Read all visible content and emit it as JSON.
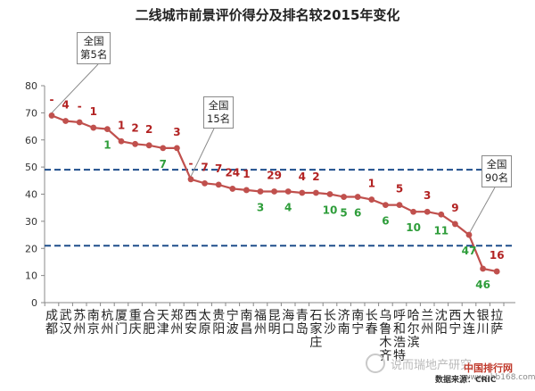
{
  "chart_data": {
    "type": "line",
    "title": "二线城市前景评价得分及排名较2015年变化",
    "ylim": [
      0,
      80
    ],
    "yticks": [
      0,
      10,
      20,
      30,
      40,
      50,
      60,
      70,
      80
    ],
    "reference_lines": [
      49,
      21
    ],
    "colors": {
      "line": "#c0504d",
      "up": "#b22222",
      "down": "#2e9d3a",
      "ref": "#1f4e8c"
    },
    "points": [
      {
        "city": [
          "成",
          "都"
        ],
        "value": 69,
        "change": "-",
        "dir": "up"
      },
      {
        "city": [
          "武",
          "汉"
        ],
        "value": 67,
        "change": "4",
        "dir": "up"
      },
      {
        "city": [
          "苏",
          "州"
        ],
        "value": 66.5,
        "change": "-",
        "dir": "up"
      },
      {
        "city": [
          "南",
          "京"
        ],
        "value": 64.5,
        "change": "1",
        "dir": "up"
      },
      {
        "city": [
          "杭",
          "州"
        ],
        "value": 64,
        "change": "1",
        "dir": "down"
      },
      {
        "city": [
          "厦",
          "门"
        ],
        "value": 59.5,
        "change": "1",
        "dir": "up"
      },
      {
        "city": [
          "重",
          "庆"
        ],
        "value": 58.5,
        "change": "2",
        "dir": "up"
      },
      {
        "city": [
          "合",
          "肥"
        ],
        "value": 58,
        "change": "2",
        "dir": "up"
      },
      {
        "city": [
          "天",
          "津"
        ],
        "value": 57,
        "change": "7",
        "dir": "down"
      },
      {
        "city": [
          "郑",
          "州"
        ],
        "value": 57,
        "change": "3",
        "dir": "up"
      },
      {
        "city": [
          "西",
          "安"
        ],
        "value": 45.5,
        "change": "-",
        "dir": "up"
      },
      {
        "city": [
          "太",
          "原"
        ],
        "value": 44,
        "change": "7",
        "dir": "up"
      },
      {
        "city": [
          "贵",
          "阳"
        ],
        "value": 43.5,
        "change": "7",
        "dir": "up"
      },
      {
        "city": [
          "宁",
          "波"
        ],
        "value": 42,
        "change": "24",
        "dir": "up"
      },
      {
        "city": [
          "南",
          "昌"
        ],
        "value": 41.5,
        "change": "1",
        "dir": "up"
      },
      {
        "city": [
          "福",
          "州"
        ],
        "value": 41,
        "change": "3",
        "dir": "down"
      },
      {
        "city": [
          "昆",
          "明"
        ],
        "value": 41,
        "change": "29",
        "dir": "up"
      },
      {
        "city": [
          "海",
          "口"
        ],
        "value": 41,
        "change": "4",
        "dir": "down"
      },
      {
        "city": [
          "青",
          "岛"
        ],
        "value": 40.5,
        "change": "4",
        "dir": "up"
      },
      {
        "city": [
          "石",
          "家",
          "庄"
        ],
        "value": 40.5,
        "change": "2",
        "dir": "up"
      },
      {
        "city": [
          "长",
          "沙"
        ],
        "value": 40,
        "change": "10",
        "dir": "down"
      },
      {
        "city": [
          "济",
          "南"
        ],
        "value": 39,
        "change": "5",
        "dir": "down"
      },
      {
        "city": [
          "南",
          "宁"
        ],
        "value": 39,
        "change": "6",
        "dir": "down"
      },
      {
        "city": [
          "长",
          "春"
        ],
        "value": 38,
        "change": "1",
        "dir": "up"
      },
      {
        "city": [
          "乌",
          "鲁",
          "木",
          "齐"
        ],
        "value": 36,
        "change": "6",
        "dir": "down"
      },
      {
        "city": [
          "呼",
          "和",
          "浩",
          "特"
        ],
        "value": 36,
        "change": "5",
        "dir": "up"
      },
      {
        "city": [
          "哈",
          "尔",
          "滨"
        ],
        "value": 33.5,
        "change": "10",
        "dir": "down"
      },
      {
        "city": [
          "兰",
          "州"
        ],
        "value": 33.5,
        "change": "3",
        "dir": "up"
      },
      {
        "city": [
          "沈",
          "阳"
        ],
        "value": 32.5,
        "change": "11",
        "dir": "down"
      },
      {
        "city": [
          "西",
          "宁"
        ],
        "value": 29,
        "change": "9",
        "dir": "up"
      },
      {
        "city": [
          "大",
          "连"
        ],
        "value": 25,
        "change": "47",
        "dir": "down"
      },
      {
        "city": [
          "银",
          "川"
        ],
        "value": 12.5,
        "change": "46",
        "dir": "down"
      },
      {
        "city": [
          "拉",
          "萨"
        ],
        "value": 11.5,
        "change": "16",
        "dir": "up"
      }
    ],
    "callouts": [
      {
        "lines": [
          "全国",
          "第5名"
        ]
      },
      {
        "lines": [
          "全国",
          "15名"
        ]
      },
      {
        "lines": [
          "全国",
          "90名"
        ]
      }
    ],
    "source": "数据来源：CRIC"
  },
  "watermark": {
    "text": "说而瑞地产研究",
    "site": "中国排行网",
    "site_sub": "www.phb168.com"
  }
}
